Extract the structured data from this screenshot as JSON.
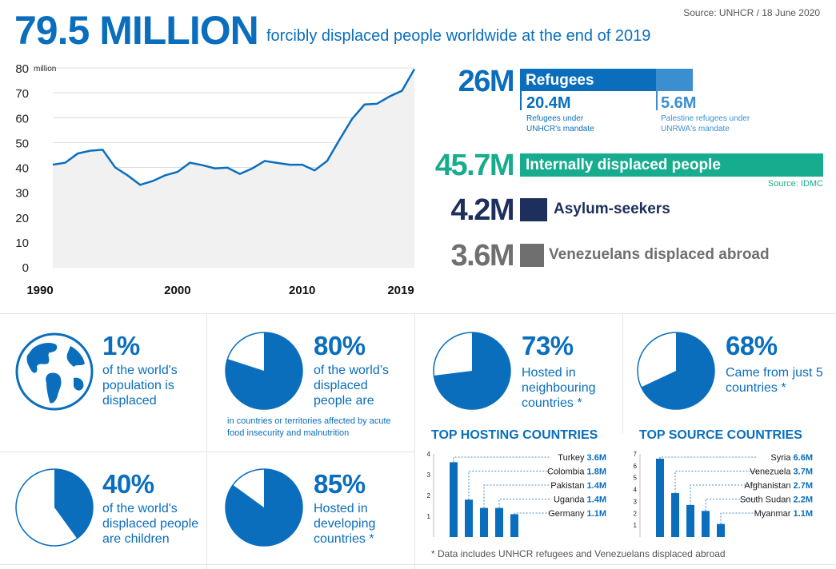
{
  "header": {
    "headline_number": "79.5 MILLION",
    "headline_text": "forcibly displaced people worldwide at the end of 2019",
    "source": "Source: UNHCR / 18 June 2020"
  },
  "chart_data": [
    {
      "type": "area",
      "ylabel": "million",
      "ylim": [
        0,
        80
      ],
      "yticks": [
        "0",
        "10",
        "20",
        "30",
        "40",
        "50",
        "60",
        "70",
        "80"
      ],
      "xticks": [
        "1990",
        "2000",
        "2010",
        "2019"
      ],
      "x": [
        1990,
        1991,
        1992,
        1993,
        1994,
        1995,
        1996,
        1997,
        1998,
        1999,
        2000,
        2001,
        2002,
        2003,
        2004,
        2005,
        2006,
        2007,
        2008,
        2009,
        2010,
        2011,
        2012,
        2013,
        2014,
        2015,
        2016,
        2017,
        2018,
        2019
      ],
      "values": [
        41.1,
        41.9,
        45.6,
        46.7,
        47.1,
        40.0,
        36.8,
        33.0,
        34.5,
        36.8,
        38.2,
        41.9,
        40.9,
        39.6,
        39.9,
        37.4,
        39.6,
        42.6,
        41.8,
        41.1,
        41.1,
        38.8,
        42.6,
        51.2,
        59.5,
        65.3,
        65.6,
        68.5,
        70.8,
        79.5
      ],
      "grid": "horizontal"
    },
    {
      "type": "bar",
      "title": "TOP HOSTING COUNTRIES",
      "categories": [
        "Turkey",
        "Colombia",
        "Pakistan",
        "Uganda",
        "Germany"
      ],
      "values": [
        3.6,
        1.8,
        1.4,
        1.4,
        1.1
      ],
      "value_labels": [
        "3.6M",
        "1.8M",
        "1.4M",
        "1.4M",
        "1.1M"
      ],
      "yticks": [
        "1",
        "2",
        "3",
        "4"
      ],
      "ylim": [
        0,
        4
      ]
    },
    {
      "type": "bar",
      "title": "TOP SOURCE COUNTRIES",
      "categories": [
        "Syria",
        "Venezuela",
        "Afghanistan",
        "South Sudan",
        "Myanmar"
      ],
      "values": [
        6.6,
        3.7,
        2.7,
        2.2,
        1.1
      ],
      "value_labels": [
        "6.6M",
        "3.7M",
        "2.7M",
        "2.2M",
        "1.1M"
      ],
      "yticks": [
        "1",
        "2",
        "3",
        "4",
        "5",
        "6",
        "7"
      ],
      "ylim": [
        0,
        7
      ]
    }
  ],
  "breakdown": {
    "refugees": {
      "number": "26M",
      "label": "Refugees",
      "color": "#0a6ebd",
      "sub1": {
        "number": "20.4M",
        "text": "Refugees under UNHCR's mandate"
      },
      "sub2": {
        "number": "5.6M",
        "text": "Palestine refugees under UNRWA's mandate",
        "color": "#3b8fd0"
      }
    },
    "idp": {
      "number": "45.7M",
      "label": "Internally displaced people",
      "color": "#18ac8e",
      "source": "Source: IDMC"
    },
    "asylum": {
      "number": "4.2M",
      "label": "Asylum-seekers",
      "color": "#1d2f5c"
    },
    "venezuelans": {
      "number": "3.6M",
      "label": "Venezuelans displaced abroad",
      "color": "#6f6f6f"
    }
  },
  "stats": [
    {
      "pct": "1%",
      "text": "of the world's population is displaced",
      "icon": "globe-icon"
    },
    {
      "pct": "80%",
      "text": "of the world’s displaced people are",
      "note": "in countries or territories affected by acute food insecurity and malnutrition",
      "value": 0.8
    },
    {
      "pct": "73%",
      "text": "Hosted in neighbouring countries *",
      "value": 0.73
    },
    {
      "pct": "68%",
      "text": "Came from just 5 countries *",
      "value": 0.68
    },
    {
      "pct": "40%",
      "text": "of the world's displaced people are children",
      "value": 0.4
    },
    {
      "pct": "85%",
      "text": "Hosted in developing countries *",
      "value": 0.85
    }
  ],
  "footnote": "* Data includes UNHCR refugees and Venezuelans displaced abroad"
}
